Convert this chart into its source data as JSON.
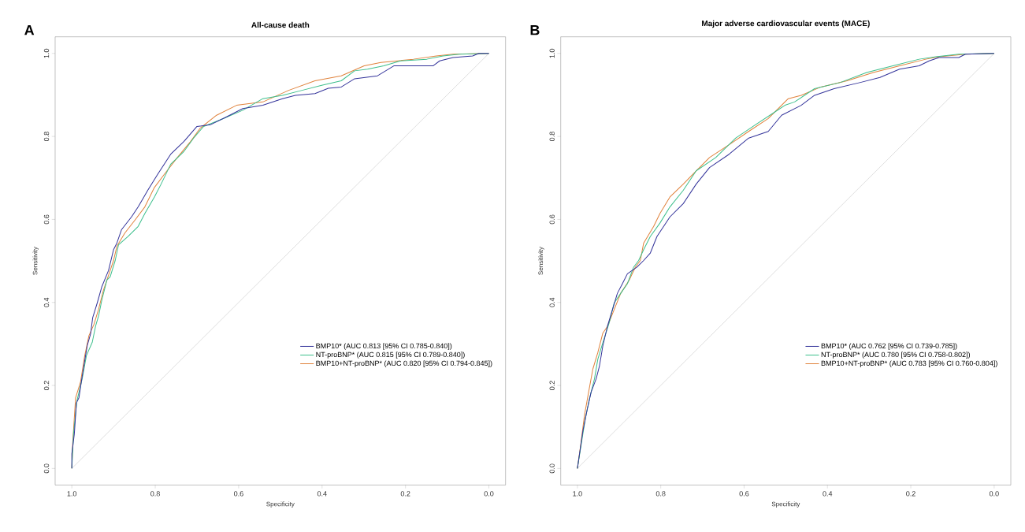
{
  "chart_data": [
    {
      "type": "line",
      "title": "All-cause death",
      "xlabel": "Specificity",
      "ylabel": "Sensitivity",
      "annotations": [
        "A"
      ],
      "legend": "bottom right",
      "xlim": [
        1.04,
        -0.04
      ],
      "ylim": [
        -0.04,
        1.04
      ],
      "xticks": [
        {
          "value": 1,
          "label": "1.0"
        },
        {
          "value": 0.8,
          "label": "0.8"
        },
        {
          "value": 0.6,
          "label": "0.6"
        },
        {
          "value": 0.4,
          "label": "0.4"
        },
        {
          "value": 0.2,
          "label": "0.2"
        },
        {
          "value": 0,
          "label": "0.0"
        }
      ],
      "yticks": [
        {
          "value": 0,
          "label": "0.0"
        },
        {
          "value": 0.2,
          "label": "0.2"
        },
        {
          "value": 0.4,
          "label": "0.4"
        },
        {
          "value": 0.6,
          "label": "0.6"
        },
        {
          "value": 0.8,
          "label": "0.8"
        },
        {
          "value": 1,
          "label": "1.0"
        }
      ],
      "series": [
        {
          "color": "#c8c8c8",
          "x": [
            1,
            0
          ],
          "values": [
            0,
            1
          ]
        },
        {
          "name": "BMP10* (AUC 0.813 [95% CI 0.785-0.840])",
          "color": "#33339a",
          "x": [
            1,
            1,
            0.994,
            0.989,
            0.983,
            0.976,
            0.969,
            0.963,
            0.955,
            0.95,
            0.939,
            0.928,
            0.912,
            0.9,
            0.892,
            0.881,
            0.857,
            0.841,
            0.818,
            0.794,
            0.763,
            0.731,
            0.7,
            0.668,
            0.629,
            0.59,
            0.542,
            0.495,
            0.464,
            0.417,
            0.385,
            0.354,
            0.322,
            0.267,
            0.228,
            0.134,
            0.118,
            0.086,
            0.039,
            0.024,
            0
          ],
          "values": [
            0,
            0.035,
            0.083,
            0.158,
            0.17,
            0.217,
            0.26,
            0.296,
            0.324,
            0.363,
            0.399,
            0.438,
            0.477,
            0.527,
            0.543,
            0.575,
            0.606,
            0.63,
            0.67,
            0.709,
            0.757,
            0.788,
            0.824,
            0.828,
            0.847,
            0.867,
            0.875,
            0.891,
            0.899,
            0.903,
            0.916,
            0.919,
            0.939,
            0.946,
            0.97,
            0.97,
            0.982,
            0.99,
            0.994,
            1,
            1
          ]
        },
        {
          "name": "NT-proBNP* (AUC 0.815 [95% CI 0.789-0.840])",
          "color": "#3dbf8c",
          "x": [
            1,
            0.996,
            0.988,
            0.975,
            0.965,
            0.951,
            0.943,
            0.936,
            0.928,
            0.916,
            0.908,
            0.896,
            0.888,
            0.865,
            0.841,
            0.825,
            0.802,
            0.786,
            0.763,
            0.731,
            0.708,
            0.684,
            0.637,
            0.59,
            0.542,
            0.495,
            0.448,
            0.401,
            0.354,
            0.322,
            0.291,
            0.252,
            0.212,
            0.149,
            0.11,
            0.071,
            0
          ],
          "values": [
            0,
            0.083,
            0.162,
            0.217,
            0.272,
            0.304,
            0.343,
            0.367,
            0.406,
            0.454,
            0.462,
            0.501,
            0.539,
            0.559,
            0.583,
            0.614,
            0.654,
            0.685,
            0.733,
            0.764,
            0.796,
            0.824,
            0.843,
            0.863,
            0.891,
            0.899,
            0.911,
            0.923,
            0.934,
            0.958,
            0.962,
            0.97,
            0.982,
            0.986,
            0.994,
            0.998,
            1
          ]
        },
        {
          "name": "BMP10+NT-proBNP* (AUC 0.820 [95% CI 0.794-0.845])",
          "color": "#e0823c",
          "x": [
            1,
            0.998,
            0.991,
            0.979,
            0.969,
            0.959,
            0.947,
            0.936,
            0.924,
            0.908,
            0.9,
            0.892,
            0.873,
            0.849,
            0.825,
            0.802,
            0.778,
            0.747,
            0.715,
            0.692,
            0.653,
            0.605,
            0.542,
            0.48,
            0.417,
            0.354,
            0.299,
            0.259,
            0.181,
            0.126,
            0.086,
            0
          ],
          "values": [
            0,
            0.059,
            0.17,
            0.209,
            0.272,
            0.32,
            0.347,
            0.383,
            0.43,
            0.477,
            0.501,
            0.535,
            0.567,
            0.598,
            0.63,
            0.677,
            0.709,
            0.749,
            0.788,
            0.82,
            0.851,
            0.875,
            0.883,
            0.911,
            0.934,
            0.946,
            0.97,
            0.978,
            0.986,
            0.994,
            0.998,
            1
          ]
        }
      ]
    },
    {
      "type": "line",
      "title": "Major adverse cardiovascular events (MACE)",
      "xlabel": "Specificity",
      "ylabel": "Sensitivity",
      "annotations": [
        "B"
      ],
      "legend": "bottom right",
      "xlim": [
        1.04,
        -0.04
      ],
      "ylim": [
        -0.04,
        1.04
      ],
      "xticks": [
        {
          "value": 1,
          "label": "1.0"
        },
        {
          "value": 0.8,
          "label": "0.8"
        },
        {
          "value": 0.6,
          "label": "0.6"
        },
        {
          "value": 0.4,
          "label": "0.4"
        },
        {
          "value": 0.2,
          "label": "0.2"
        },
        {
          "value": 0,
          "label": "0.0"
        }
      ],
      "yticks": [
        {
          "value": 0,
          "label": "0.0"
        },
        {
          "value": 0.2,
          "label": "0.2"
        },
        {
          "value": 0.4,
          "label": "0.4"
        },
        {
          "value": 0.6,
          "label": "0.6"
        },
        {
          "value": 0.8,
          "label": "0.8"
        },
        {
          "value": 1,
          "label": "1.0"
        }
      ],
      "series": [
        {
          "color": "#c8c8c8",
          "x": [
            1,
            0
          ],
          "values": [
            0,
            1
          ]
        },
        {
          "name": "BMP10* (AUC 0.762 [95% CI 0.739-0.785])",
          "color": "#33339a",
          "x": [
            1,
            0.994,
            0.987,
            0.976,
            0.967,
            0.955,
            0.947,
            0.939,
            0.928,
            0.916,
            0.904,
            0.892,
            0.88,
            0.857,
            0.841,
            0.825,
            0.809,
            0.778,
            0.746,
            0.715,
            0.683,
            0.636,
            0.589,
            0.542,
            0.51,
            0.463,
            0.431,
            0.384,
            0.321,
            0.274,
            0.227,
            0.18,
            0.156,
            0.132,
            0.085,
            0.069,
            0
          ],
          "values": [
            0,
            0.041,
            0.089,
            0.144,
            0.184,
            0.216,
            0.247,
            0.295,
            0.342,
            0.382,
            0.422,
            0.445,
            0.469,
            0.485,
            0.501,
            0.519,
            0.559,
            0.606,
            0.638,
            0.685,
            0.725,
            0.757,
            0.796,
            0.812,
            0.851,
            0.875,
            0.899,
            0.915,
            0.93,
            0.942,
            0.962,
            0.97,
            0.982,
            0.99,
            0.99,
            0.998,
            1
          ]
        },
        {
          "name": "NT-proBNP* (AUC 0.780 [95% CI 0.758-0.802])",
          "color": "#3dbf8c",
          "x": [
            1,
            0.991,
            0.981,
            0.971,
            0.959,
            0.951,
            0.939,
            0.924,
            0.912,
            0.896,
            0.88,
            0.865,
            0.853,
            0.841,
            0.825,
            0.802,
            0.778,
            0.746,
            0.715,
            0.668,
            0.62,
            0.573,
            0.526,
            0.502,
            0.479,
            0.431,
            0.369,
            0.306,
            0.243,
            0.18,
            0.14,
            0.085,
            0
          ],
          "values": [
            0,
            0.057,
            0.12,
            0.168,
            0.216,
            0.263,
            0.303,
            0.35,
            0.398,
            0.422,
            0.445,
            0.485,
            0.501,
            0.527,
            0.559,
            0.591,
            0.63,
            0.67,
            0.717,
            0.749,
            0.796,
            0.828,
            0.859,
            0.875,
            0.883,
            0.915,
            0.93,
            0.954,
            0.97,
            0.986,
            0.992,
            0.998,
            1
          ]
        },
        {
          "name": "BMP10+NT-proBNP* (AUC 0.783 [95% CI 0.760-0.804])",
          "color": "#e0823c",
          "x": [
            1,
            0.992,
            0.983,
            0.973,
            0.963,
            0.951,
            0.939,
            0.928,
            0.912,
            0.896,
            0.876,
            0.861,
            0.849,
            0.841,
            0.817,
            0.802,
            0.778,
            0.746,
            0.715,
            0.683,
            0.636,
            0.589,
            0.542,
            0.494,
            0.463,
            0.416,
            0.353,
            0.29,
            0.227,
            0.164,
            0.132,
            0.069,
            0
          ],
          "values": [
            0,
            0.057,
            0.128,
            0.184,
            0.239,
            0.279,
            0.326,
            0.342,
            0.382,
            0.422,
            0.453,
            0.485,
            0.501,
            0.543,
            0.583,
            0.614,
            0.654,
            0.685,
            0.717,
            0.749,
            0.78,
            0.812,
            0.843,
            0.891,
            0.899,
            0.919,
            0.934,
            0.954,
            0.97,
            0.986,
            0.992,
            0.998,
            1
          ]
        }
      ]
    }
  ]
}
